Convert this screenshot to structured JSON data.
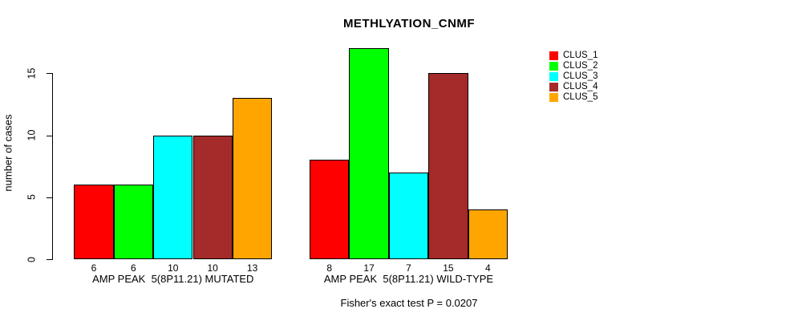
{
  "chart_data": {
    "type": "bar",
    "title": "METHLYATION_CNMF",
    "ylabel": "number of cases",
    "xlabel": "",
    "categories": [
      "AMP PEAK  5(8P11.21) MUTATED",
      "AMP PEAK  5(8P11.21) WILD-TYPE"
    ],
    "series": [
      {
        "name": "CLUS_1",
        "color": "#FF0000",
        "values": [
          6,
          8
        ]
      },
      {
        "name": "CLUS_2",
        "color": "#00FF00",
        "values": [
          6,
          17
        ]
      },
      {
        "name": "CLUS_3",
        "color": "#00FFFF",
        "values": [
          10,
          7
        ]
      },
      {
        "name": "CLUS_4",
        "color": "#A52A2A",
        "values": [
          10,
          15
        ]
      },
      {
        "name": "CLUS_5",
        "color": "#FFA500",
        "values": [
          13,
          4
        ]
      }
    ],
    "yticks": [
      0,
      5,
      10,
      15
    ],
    "ylim": [
      0,
      17
    ],
    "grid": false,
    "bar_value_labels_shown": true,
    "legend_position": "top-right",
    "annotation": "Fisher's exact test P = 0.0207"
  }
}
